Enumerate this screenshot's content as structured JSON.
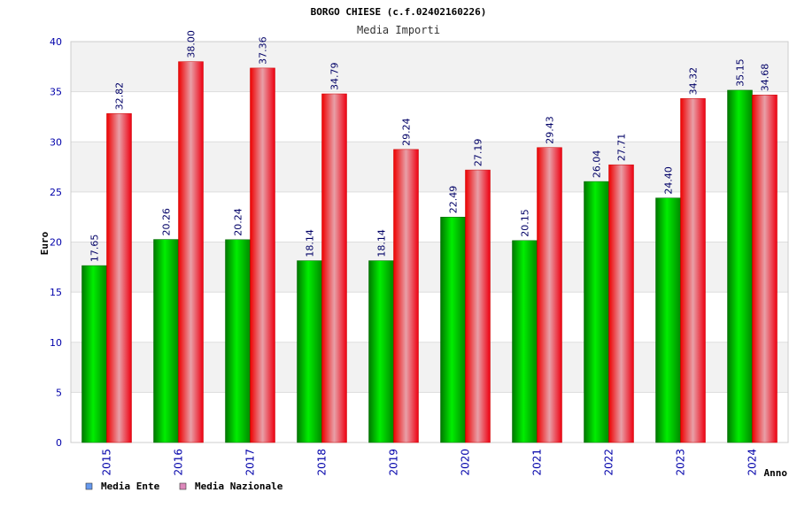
{
  "chart_data": {
    "type": "bar",
    "title": "BORGO CHIESE (c.f.02402160226)",
    "subtitle": "Media Importi",
    "xlabel": "Anno",
    "ylabel": "Euro",
    "ylim": [
      0,
      40
    ],
    "yticks": [
      0,
      5,
      10,
      15,
      20,
      25,
      30,
      35,
      40
    ],
    "grid": true,
    "legend_position": "bottom-left",
    "categories": [
      "2015",
      "2016",
      "2017",
      "2018",
      "2019",
      "2020",
      "2021",
      "2022",
      "2023",
      "2024"
    ],
    "series": [
      {
        "name": "Media Ente",
        "color": "#00aa00",
        "legend_color": "#6699ee",
        "values": [
          17.65,
          20.26,
          20.24,
          18.14,
          18.14,
          22.49,
          20.15,
          26.04,
          24.4,
          35.15
        ],
        "labels": [
          "17.65",
          "20.26",
          "20.24",
          "18.14",
          "18.14",
          "22.49",
          "20.15",
          "26.04",
          "24.40",
          "35.15"
        ]
      },
      {
        "name": "Media Nazionale",
        "color": "#ee1122",
        "legend_color": "#dd88bb",
        "values": [
          32.82,
          38.0,
          37.36,
          34.79,
          29.24,
          27.19,
          29.43,
          27.71,
          34.32,
          34.68
        ],
        "labels": [
          "32.82",
          "38.00",
          "37.36",
          "34.79",
          "29.24",
          "27.19",
          "29.43",
          "27.71",
          "34.32",
          "34.68"
        ]
      }
    ]
  }
}
